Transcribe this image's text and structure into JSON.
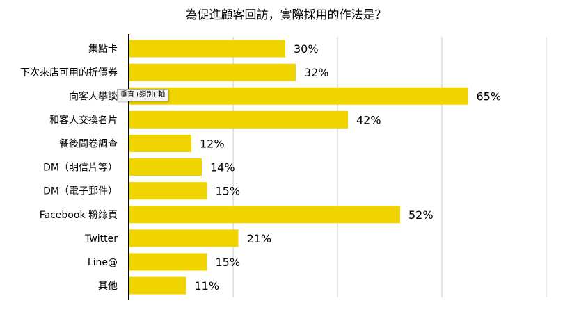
{
  "chart_data": {
    "type": "bar",
    "orientation": "horizontal",
    "title": "為促進顧客回訪，實際採用的作法是？",
    "categories": [
      "集點卡",
      "下次來店可用的折價券",
      "向客人攀談",
      "和客人交換名片",
      "餐後問卷調查",
      "DM（明信片等）",
      "DM（電子郵件）",
      "Facebook 粉絲頁",
      "Twitter",
      "Line@",
      "其他"
    ],
    "values": [
      30,
      32,
      65,
      42,
      12,
      14,
      15,
      52,
      21,
      15,
      11
    ],
    "value_labels": [
      "30%",
      "32%",
      "65%",
      "42%",
      "12%",
      "14%",
      "15%",
      "52%",
      "21%",
      "15%",
      "11%"
    ],
    "xlim": [
      0,
      80
    ],
    "gridlines_at": [
      0,
      20,
      40,
      60,
      80
    ],
    "grid": true,
    "bar_color": "#f0d400",
    "axis_color": "#000000",
    "grid_color": "#c8c8c8"
  },
  "tooltip": {
    "text": "垂直 (類別) 軸"
  }
}
